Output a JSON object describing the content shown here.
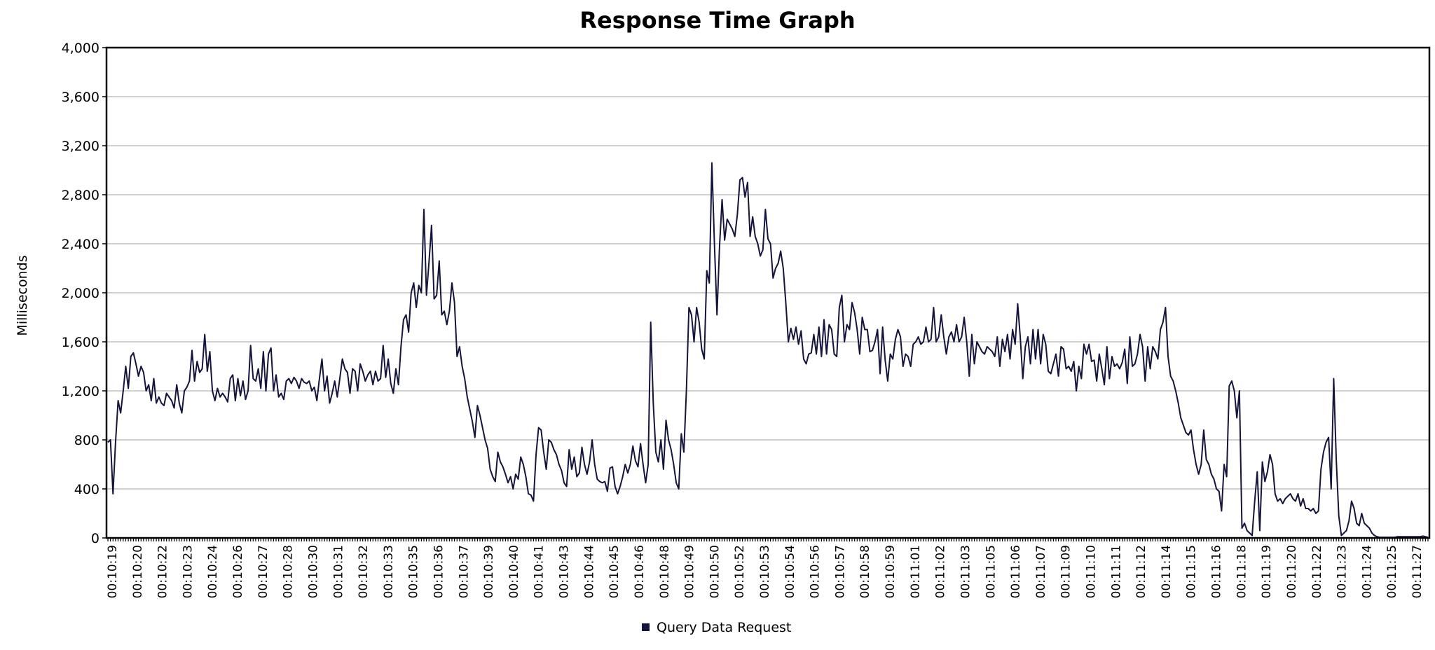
{
  "chart_data": {
    "type": "line",
    "title": "Response Time Graph",
    "xlabel": "",
    "ylabel": "Milliseconds",
    "ylim": [
      0,
      4000
    ],
    "yticks": [
      0,
      400,
      800,
      1200,
      1600,
      2000,
      2400,
      2800,
      3200,
      3600,
      4000
    ],
    "ytick_labels": [
      "0",
      "400",
      "800",
      "1,200",
      "1,600",
      "2,000",
      "2,400",
      "2,800",
      "3,200",
      "3,600",
      "4,000"
    ],
    "xticks": [
      "00:10:19",
      "00:10:20",
      "00:10:22",
      "00:10:23",
      "00:10:24",
      "00:10:26",
      "00:10:27",
      "00:10:28",
      "00:10:30",
      "00:10:31",
      "00:10:32",
      "00:10:33",
      "00:10:35",
      "00:10:36",
      "00:10:37",
      "00:10:39",
      "00:10:40",
      "00:10:41",
      "00:10:43",
      "00:10:44",
      "00:10:45",
      "00:10:46",
      "00:10:48",
      "00:10:49",
      "00:10:50",
      "00:10:52",
      "00:10:53",
      "00:10:54",
      "00:10:56",
      "00:10:57",
      "00:10:58",
      "00:10:59",
      "00:11:01",
      "00:11:02",
      "00:11:03",
      "00:11:05",
      "00:11:06",
      "00:11:07",
      "00:11:09",
      "00:11:10",
      "00:11:11",
      "00:11:12",
      "00:11:14",
      "00:11:15",
      "00:11:16",
      "00:11:18",
      "00:11:19",
      "00:11:20",
      "00:11:22",
      "00:11:23",
      "00:11:24",
      "00:11:25",
      "00:11:27"
    ],
    "grid": true,
    "legend_position": "bottom-center",
    "series": [
      {
        "name": "Query Data Request",
        "color": "#14143c",
        "values": [
          780,
          800,
          360,
          780,
          1120,
          1020,
          1200,
          1400,
          1220,
          1480,
          1510,
          1420,
          1320,
          1400,
          1350,
          1200,
          1250,
          1120,
          1300,
          1100,
          1150,
          1100,
          1080,
          1180,
          1150,
          1120,
          1060,
          1250,
          1100,
          1020,
          1200,
          1230,
          1280,
          1530,
          1280,
          1440,
          1350,
          1380,
          1660,
          1360,
          1520,
          1200,
          1120,
          1220,
          1150,
          1180,
          1150,
          1110,
          1300,
          1330,
          1120,
          1300,
          1160,
          1280,
          1130,
          1200,
          1570,
          1300,
          1280,
          1380,
          1220,
          1520,
          1200,
          1500,
          1550,
          1200,
          1330,
          1150,
          1180,
          1130,
          1280,
          1300,
          1260,
          1310,
          1280,
          1220,
          1300,
          1270,
          1260,
          1280,
          1200,
          1230,
          1120,
          1300,
          1460,
          1200,
          1320,
          1100,
          1180,
          1280,
          1150,
          1300,
          1460,
          1380,
          1350,
          1180,
          1380,
          1360,
          1200,
          1420,
          1360,
          1280,
          1330,
          1360,
          1250,
          1360,
          1280,
          1300,
          1570,
          1310,
          1460,
          1260,
          1180,
          1380,
          1250,
          1560,
          1780,
          1820,
          1680,
          2000,
          2080,
          1880,
          2060,
          2000,
          2680,
          1980,
          2250,
          2550,
          1950,
          1980,
          2260,
          1820,
          1850,
          1740,
          1850,
          2080,
          1920,
          1480,
          1560,
          1400,
          1300,
          1150,
          1050,
          950,
          820,
          1080,
          1000,
          900,
          800,
          730,
          560,
          500,
          460,
          700,
          620,
          580,
          520,
          450,
          500,
          400,
          520,
          480,
          660,
          600,
          500,
          360,
          350,
          300,
          680,
          900,
          880,
          700,
          560,
          800,
          780,
          720,
          680,
          600,
          550,
          450,
          420,
          720,
          560,
          660,
          500,
          530,
          740,
          600,
          520,
          620,
          800,
          600,
          480,
          460,
          450,
          460,
          380,
          570,
          580,
          420,
          360,
          420,
          500,
          600,
          530,
          600,
          750,
          630,
          580,
          770,
          600,
          450,
          600,
          1760,
          1100,
          700,
          620,
          800,
          560,
          960,
          800,
          720,
          600,
          450,
          400,
          850,
          700,
          1200,
          1880,
          1820,
          1600,
          1880,
          1760,
          1540,
          1460,
          2180,
          2080,
          3060,
          2400,
          1820,
          2380,
          2760,
          2430,
          2600,
          2560,
          2520,
          2460,
          2640,
          2920,
          2940,
          2780,
          2900,
          2460,
          2620,
          2460,
          2400,
          2300,
          2350,
          2680,
          2440,
          2400,
          2120,
          2200,
          2240,
          2340,
          2200,
          1920,
          1600,
          1710,
          1620,
          1720,
          1580,
          1690,
          1460,
          1420,
          1500,
          1510,
          1660,
          1500,
          1720,
          1480,
          1780,
          1500,
          1740,
          1700,
          1500,
          1480,
          1880,
          1980,
          1600,
          1740,
          1700,
          1920,
          1840,
          1700,
          1500,
          1800,
          1700,
          1700,
          1520,
          1530,
          1600,
          1700,
          1340,
          1720,
          1450,
          1280,
          1500,
          1460,
          1620,
          1700,
          1640,
          1400,
          1500,
          1480,
          1400,
          1580,
          1600,
          1640,
          1580,
          1600,
          1720,
          1600,
          1620,
          1880,
          1600,
          1640,
          1820,
          1640,
          1500,
          1640,
          1680,
          1600,
          1740,
          1600,
          1640,
          1800,
          1600,
          1320,
          1660,
          1420,
          1600,
          1560,
          1520,
          1500,
          1560,
          1540,
          1520,
          1480,
          1640,
          1400,
          1620,
          1520,
          1660,
          1460,
          1700,
          1580,
          1910,
          1640,
          1300,
          1560,
          1640,
          1420,
          1700,
          1460,
          1700,
          1420,
          1660,
          1580,
          1360,
          1340,
          1420,
          1500,
          1320,
          1560,
          1540,
          1380,
          1400,
          1360,
          1440,
          1200,
          1400,
          1300,
          1580,
          1500,
          1580,
          1440,
          1450,
          1280,
          1500,
          1380,
          1250,
          1560,
          1300,
          1480,
          1400,
          1420,
          1380,
          1430,
          1540,
          1260,
          1640,
          1400,
          1420,
          1500,
          1660,
          1560,
          1280,
          1560,
          1380,
          1560,
          1520,
          1460,
          1700,
          1760,
          1880,
          1480,
          1320,
          1280,
          1200,
          1100,
          980,
          920,
          860,
          840,
          880,
          720,
          600,
          520,
          600,
          880,
          640,
          600,
          520,
          480,
          400,
          380,
          220,
          600,
          500,
          1240,
          1280,
          1200,
          980,
          1200,
          80,
          120,
          60,
          40,
          20,
          300,
          540,
          60,
          620,
          460,
          540,
          680,
          600,
          360,
          300,
          320,
          280,
          320,
          340,
          360,
          320,
          300,
          360,
          260,
          320,
          240,
          240,
          220,
          240,
          200,
          220,
          560,
          700,
          780,
          820,
          400,
          1300,
          640,
          180,
          20,
          40,
          60,
          140,
          300,
          240,
          120,
          100,
          200,
          120,
          100,
          80,
          40,
          20,
          10,
          5,
          5,
          5,
          5,
          5,
          5,
          5,
          10,
          10,
          10,
          10,
          10,
          10,
          10,
          10,
          10,
          10,
          15,
          10,
          5
        ]
      }
    ]
  }
}
